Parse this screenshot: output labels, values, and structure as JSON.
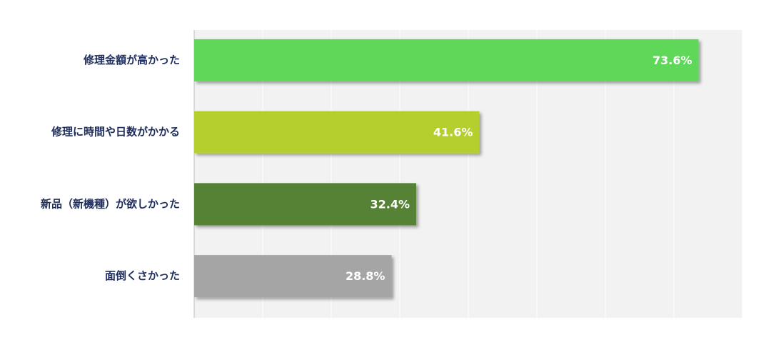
{
  "chart_data": {
    "type": "bar",
    "orientation": "horizontal",
    "categories": [
      "修理金額が高かった",
      "修理に時間や日数がかかる",
      "新品（新機種）が欲しかった",
      "面倒くさかった"
    ],
    "values": [
      73.6,
      41.6,
      32.4,
      28.8
    ],
    "value_labels": [
      "73.6%",
      "41.6%",
      "32.4%",
      "28.8%"
    ],
    "colors": [
      "#5fd85a",
      "#b4cf2d",
      "#548235",
      "#a5a5a5"
    ],
    "xlim": [
      0,
      80
    ],
    "xticks": [
      0,
      10,
      20,
      30,
      40,
      50,
      60,
      70,
      80
    ],
    "grid": true
  }
}
